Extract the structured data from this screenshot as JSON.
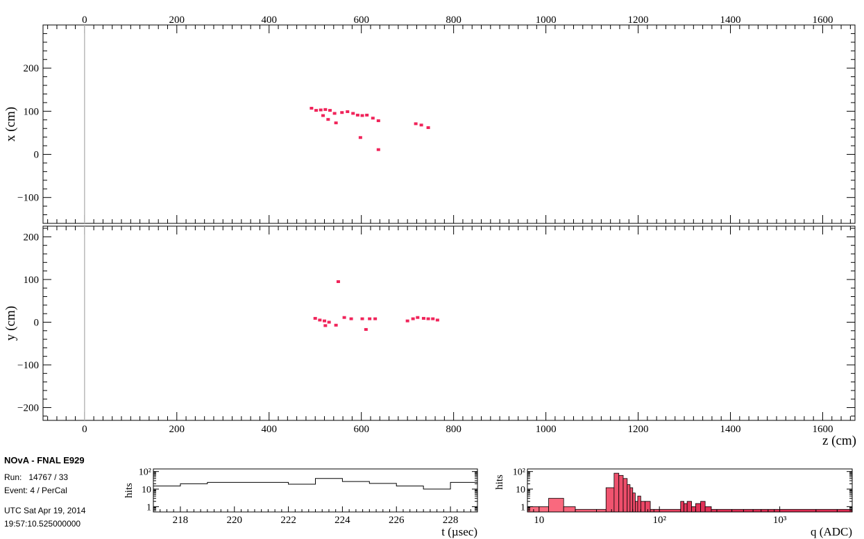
{
  "info": {
    "title": "NOvA - FNAL E929",
    "run_label": "Run:",
    "run_value": "14767 / 33",
    "event_label": "Event:",
    "event_value": "4 / PerCal",
    "date": "UTC Sat Apr 19, 2014",
    "time": "19:57:10.525000000"
  },
  "chart_data": [
    {
      "type": "scatter",
      "name_hint": "xz-view",
      "title": "",
      "xlabel": "",
      "ylabel": "x (cm)",
      "xlim": [
        -90,
        1670
      ],
      "ylim": [
        -160,
        300
      ],
      "xticks": [
        0,
        200,
        400,
        600,
        800,
        1000,
        1200,
        1400,
        1600
      ],
      "yticks": [
        -100,
        0,
        100,
        200
      ],
      "top_ticks": true,
      "vertical_marker_x": 0,
      "hit_color": "#f0245a",
      "points": [
        {
          "z": 492,
          "x": 107
        },
        {
          "z": 502,
          "x": 102
        },
        {
          "z": 512,
          "x": 103
        },
        {
          "z": 522,
          "x": 104
        },
        {
          "z": 517,
          "x": 90
        },
        {
          "z": 532,
          "x": 102
        },
        {
          "z": 528,
          "x": 81
        },
        {
          "z": 542,
          "x": 95
        },
        {
          "z": 545,
          "x": 73
        },
        {
          "z": 558,
          "x": 97
        },
        {
          "z": 570,
          "x": 99
        },
        {
          "z": 582,
          "x": 95
        },
        {
          "z": 592,
          "x": 91
        },
        {
          "z": 602,
          "x": 90
        },
        {
          "z": 612,
          "x": 91
        },
        {
          "z": 598,
          "x": 39
        },
        {
          "z": 625,
          "x": 84
        },
        {
          "z": 637,
          "x": 78
        },
        {
          "z": 637,
          "x": 11
        },
        {
          "z": 718,
          "x": 71
        },
        {
          "z": 730,
          "x": 68
        },
        {
          "z": 745,
          "x": 62
        }
      ]
    },
    {
      "type": "scatter",
      "name_hint": "yz-view",
      "title": "",
      "xlabel": "z (cm)",
      "ylabel": "y (cm)",
      "xlim": [
        -90,
        1670
      ],
      "ylim": [
        -230,
        225
      ],
      "xticks": [
        0,
        200,
        400,
        600,
        800,
        1000,
        1200,
        1400,
        1600
      ],
      "yticks": [
        -200,
        -100,
        0,
        100,
        200
      ],
      "vertical_marker_x": 0,
      "hit_color": "#f0245a",
      "points": [
        {
          "z": 500,
          "y": 9
        },
        {
          "z": 510,
          "y": 5
        },
        {
          "z": 520,
          "y": 3
        },
        {
          "z": 530,
          "y": 0
        },
        {
          "z": 522,
          "y": -8
        },
        {
          "z": 545,
          "y": -7
        },
        {
          "z": 550,
          "y": 95
        },
        {
          "z": 563,
          "y": 11
        },
        {
          "z": 578,
          "y": 8
        },
        {
          "z": 602,
          "y": 8
        },
        {
          "z": 610,
          "y": -17
        },
        {
          "z": 618,
          "y": 8
        },
        {
          "z": 630,
          "y": 8
        },
        {
          "z": 700,
          "y": 3
        },
        {
          "z": 712,
          "y": 8
        },
        {
          "z": 722,
          "y": 11
        },
        {
          "z": 735,
          "y": 9
        },
        {
          "z": 745,
          "y": 8
        },
        {
          "z": 755,
          "y": 8
        },
        {
          "z": 765,
          "y": 5
        }
      ]
    },
    {
      "type": "line",
      "name_hint": "time-histogram",
      "title": "",
      "xlabel": "t (µsec)",
      "ylabel": "hits",
      "log_y": true,
      "xlim": [
        217,
        229
      ],
      "ylim": [
        0.5,
        140
      ],
      "xticks": [
        218,
        220,
        222,
        224,
        226,
        228
      ],
      "yticks": [
        {
          "value": 1,
          "label": "1"
        },
        {
          "value": 10,
          "label": "10"
        },
        {
          "value": 100,
          "label": "10²"
        }
      ],
      "bin_edges": [
        217,
        218,
        219,
        220,
        221,
        222,
        223,
        224,
        225,
        226,
        227,
        228,
        229
      ],
      "values": [
        15,
        20,
        24,
        24,
        24,
        19,
        40,
        27,
        21,
        15,
        10,
        24,
        17
      ]
    },
    {
      "type": "bar",
      "name_hint": "charge-histogram",
      "title": "",
      "xlabel": "q (ADC)",
      "ylabel": "hits",
      "log_x": true,
      "log_y": true,
      "xlim": [
        8,
        4000
      ],
      "ylim": [
        0.5,
        140
      ],
      "xticks": [
        {
          "value": 10,
          "label": "10"
        },
        {
          "value": 100,
          "label": "10²"
        },
        {
          "value": 1000,
          "label": "10³"
        }
      ],
      "yticks": [
        {
          "value": 1,
          "label": "1"
        },
        {
          "value": 10,
          "label": "10"
        },
        {
          "value": 100,
          "label": "10²"
        }
      ],
      "color_low": "#fa6c80",
      "color_high": "#d10c3c",
      "bins": [
        {
          "lo": 8,
          "hi": 12,
          "v": 1
        },
        {
          "lo": 12,
          "hi": 16,
          "v": 3
        },
        {
          "lo": 16,
          "hi": 20,
          "v": 1
        },
        {
          "lo": 20,
          "hi": 36,
          "v": 0.7
        },
        {
          "lo": 36,
          "hi": 42,
          "v": 12
        },
        {
          "lo": 42,
          "hi": 46,
          "v": 80
        },
        {
          "lo": 46,
          "hi": 50,
          "v": 60
        },
        {
          "lo": 50,
          "hi": 54,
          "v": 40
        },
        {
          "lo": 54,
          "hi": 57,
          "v": 18
        },
        {
          "lo": 57,
          "hi": 60,
          "v": 12
        },
        {
          "lo": 60,
          "hi": 63,
          "v": 6
        },
        {
          "lo": 63,
          "hi": 66,
          "v": 2
        },
        {
          "lo": 66,
          "hi": 70,
          "v": 4
        },
        {
          "lo": 70,
          "hi": 76,
          "v": 2
        },
        {
          "lo": 76,
          "hi": 84,
          "v": 2
        },
        {
          "lo": 84,
          "hi": 150,
          "v": 0.7
        },
        {
          "lo": 150,
          "hi": 160,
          "v": 2
        },
        {
          "lo": 160,
          "hi": 170,
          "v": 1.5
        },
        {
          "lo": 170,
          "hi": 185,
          "v": 2
        },
        {
          "lo": 185,
          "hi": 200,
          "v": 1
        },
        {
          "lo": 200,
          "hi": 220,
          "v": 1.5
        },
        {
          "lo": 220,
          "hi": 240,
          "v": 2
        },
        {
          "lo": 240,
          "hi": 270,
          "v": 1
        },
        {
          "lo": 270,
          "hi": 4000,
          "v": 0.7
        }
      ]
    }
  ]
}
